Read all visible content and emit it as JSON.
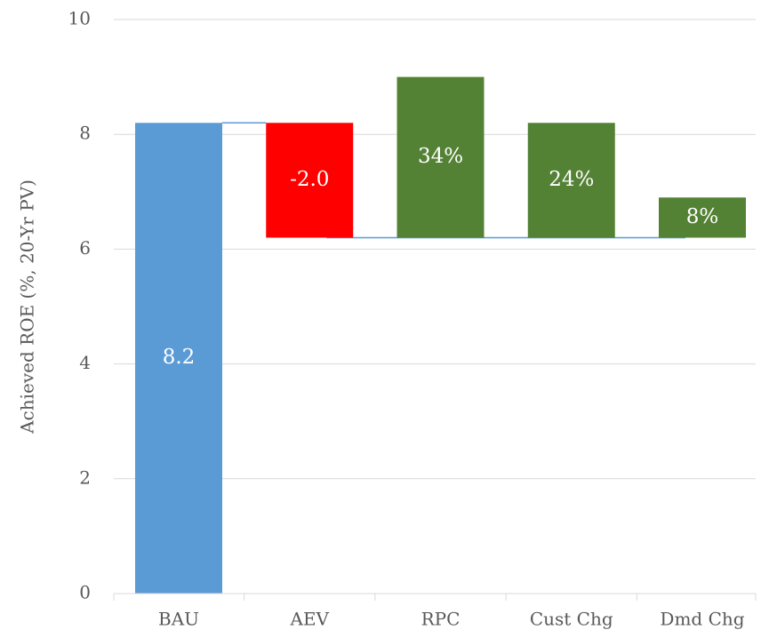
{
  "chart_data": {
    "type": "waterfall",
    "y_label": "Achieved ROE  (%, 20-Yr PV)",
    "categories": [
      "BAU",
      "AEV",
      "RPC",
      "Cust Chg",
      "Dmd Chg"
    ],
    "values": [
      8.2,
      -2.0,
      2.8,
      2.0,
      0.7
    ],
    "annotations": [
      "8.2",
      "-2.0",
      "34%",
      "24%",
      "8%"
    ],
    "colors": [
      "#5b9bd5",
      "#ff0000",
      "#548235",
      "#548235",
      "#548235"
    ],
    "connector_color": "#5b9bd5",
    "ylim": [
      0,
      10
    ],
    "yticks": [
      0,
      2,
      4,
      6,
      8,
      10
    ],
    "grid": true
  }
}
